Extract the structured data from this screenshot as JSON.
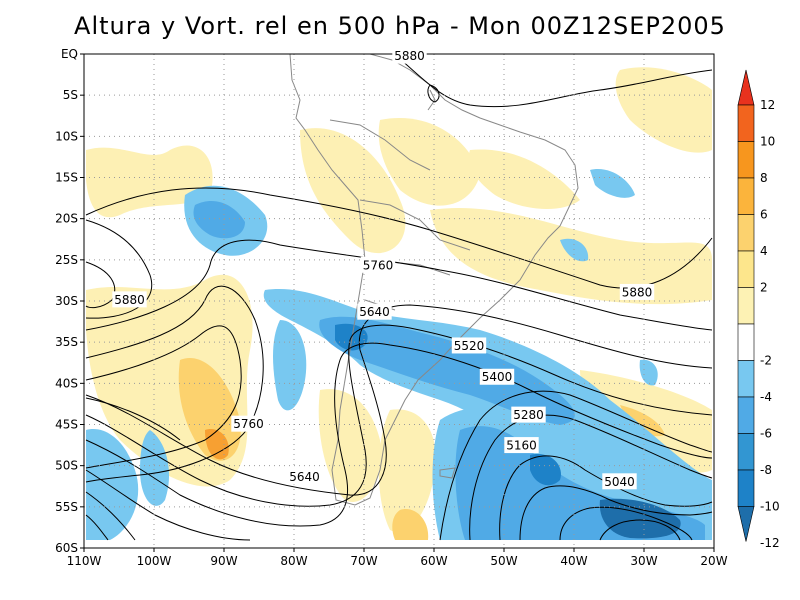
{
  "title": "Altura y Vort. rel en 500 hPa - Mon 00Z12SEP2005",
  "latitude_ticks": [
    "EQ",
    "5S",
    "10S",
    "15S",
    "20S",
    "25S",
    "30S",
    "35S",
    "40S",
    "45S",
    "50S",
    "55S",
    "60S"
  ],
  "longitude_ticks": [
    "110W",
    "100W",
    "90W",
    "80W",
    "70W",
    "60W",
    "50W",
    "40W",
    "30W",
    "20W"
  ],
  "height_contour_labels": [
    {
      "text": "5880",
      "lon": -63.5,
      "lat": -0.2
    },
    {
      "text": "5880",
      "lon": -103.5,
      "lat": -29.8
    },
    {
      "text": "5880",
      "lon": -31,
      "lat": -28.9
    },
    {
      "text": "5760",
      "lon": -68,
      "lat": -25.6
    },
    {
      "text": "5760",
      "lon": -86.5,
      "lat": -44.9
    },
    {
      "text": "5640",
      "lon": -68.5,
      "lat": -31.3
    },
    {
      "text": "5640",
      "lon": -78.5,
      "lat": -51.3
    },
    {
      "text": "5520",
      "lon": -55,
      "lat": -35.4
    },
    {
      "text": "5400",
      "lon": -51,
      "lat": -39.2
    },
    {
      "text": "5280",
      "lon": -46.5,
      "lat": -43.8
    },
    {
      "text": "5160",
      "lon": -47.5,
      "lat": -47.5
    },
    {
      "text": "5040",
      "lon": -33.5,
      "lat": -51.9
    }
  ],
  "colorbar": {
    "labels": [
      "12",
      "10",
      "8",
      "6",
      "4",
      "2",
      "-2",
      "-4",
      "-6",
      "-8",
      "-10",
      "-12"
    ],
    "colors": [
      "#e8321e",
      "#f2641e",
      "#f7961e",
      "#fbb43c",
      "#fcd26e",
      "#fde68c",
      "#fdf2b4",
      "#ffffff",
      "#78c8f0",
      "#50aae6",
      "#3296d2",
      "#1e82c8",
      "#1e6eaa"
    ]
  },
  "map": {
    "lon_range": [
      -110,
      -20
    ],
    "lat_range": [
      -60,
      0
    ],
    "colors": {
      "positive_light": "#fdf0b4",
      "positive_mid": "#fcd26e",
      "positive_strong": "#f7a032",
      "negative_light": "#78c8f0",
      "negative_mid": "#50aae6",
      "negative_strong": "#1e82c8",
      "negative_deep": "#1e6eaa",
      "contour_line": "#000000",
      "coastline": "#888888",
      "grid": "#9a9a9a"
    }
  }
}
